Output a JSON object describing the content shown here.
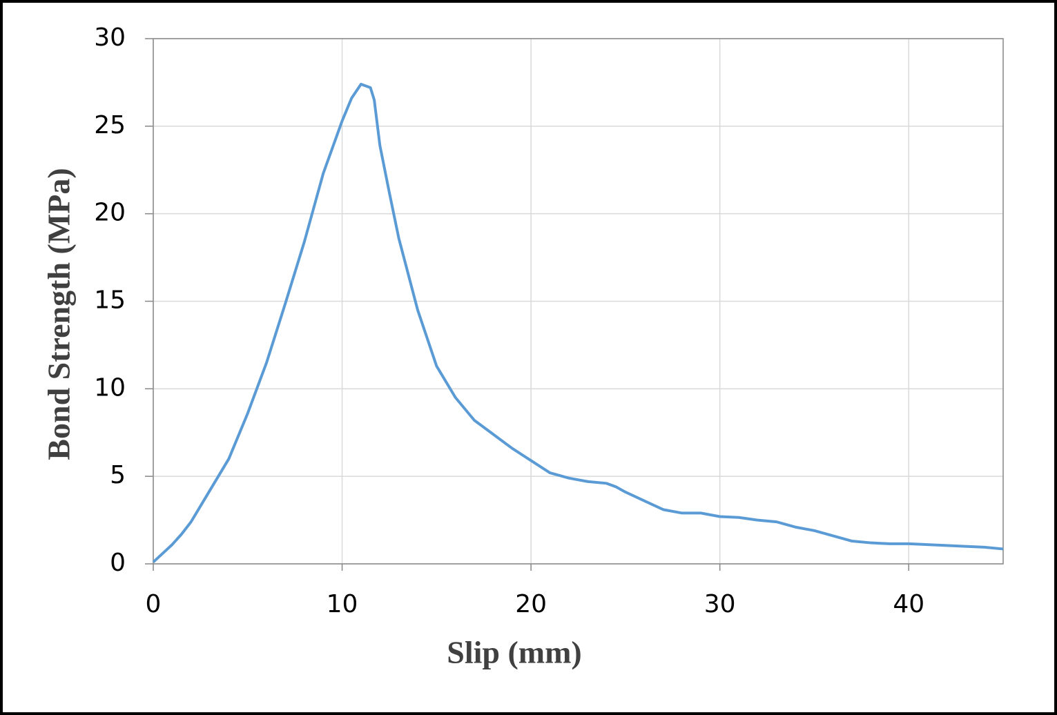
{
  "chart_data": {
    "type": "line",
    "xlabel": "Slip (mm)",
    "ylabel": "Bond Strength (MPa)",
    "x": [
      0,
      0.5,
      1,
      1.5,
      2,
      3,
      4,
      5,
      6,
      7,
      8,
      9,
      10,
      10.5,
      11,
      11.5,
      11.7,
      12,
      12.5,
      13,
      14,
      15,
      16,
      17,
      18,
      19,
      20,
      21,
      22,
      23,
      24,
      24.5,
      25,
      26,
      27,
      28,
      29,
      30,
      31,
      32,
      33,
      34,
      35,
      36,
      37,
      38,
      39,
      40,
      41,
      42,
      43,
      44,
      45
    ],
    "values": [
      0.1,
      0.6,
      1.1,
      1.7,
      2.4,
      4.2,
      6.0,
      8.6,
      11.5,
      14.9,
      18.4,
      22.3,
      25.3,
      26.6,
      27.4,
      27.2,
      26.5,
      23.9,
      21.2,
      18.6,
      14.5,
      11.3,
      9.5,
      8.2,
      7.4,
      6.6,
      5.9,
      5.2,
      4.9,
      4.7,
      4.6,
      4.4,
      4.1,
      3.6,
      3.1,
      2.9,
      2.9,
      2.7,
      2.65,
      2.5,
      2.4,
      2.1,
      1.9,
      1.6,
      1.3,
      1.2,
      1.15,
      1.15,
      1.1,
      1.05,
      1.0,
      0.95,
      0.85
    ],
    "color": "#5b9bd5",
    "xlim": [
      0,
      45
    ],
    "xticks": [
      0,
      10,
      20,
      30,
      40
    ],
    "ylim": [
      0,
      30
    ],
    "yticks": [
      0,
      5,
      10,
      15,
      20,
      25,
      30
    ],
    "grid": true
  }
}
